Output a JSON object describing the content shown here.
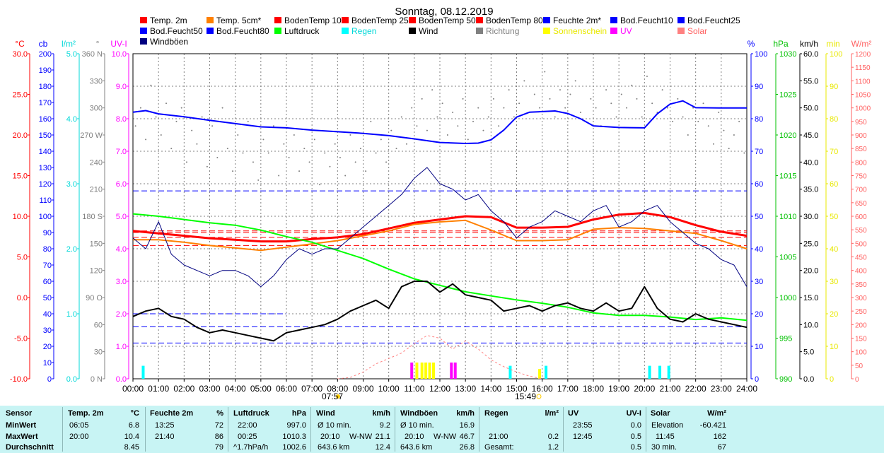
{
  "title": "Sonntag, 08.12.2019",
  "legend": [
    {
      "label": "Temp. 2m",
      "color": "#ff0000",
      "label_color": "#000000"
    },
    {
      "label": "Temp. 5cm*",
      "color": "#ff8000",
      "label_color": "#000000"
    },
    {
      "label": "BodenTemp 10",
      "color": "#ff0000",
      "label_color": "#000000"
    },
    {
      "label": "BodenTemp 25",
      "color": "#ff0000",
      "label_color": "#000000"
    },
    {
      "label": "BodenTemp 50",
      "color": "#ff0000",
      "label_color": "#000000"
    },
    {
      "label": "BodenTemp 80",
      "color": "#ff0000",
      "label_color": "#000000"
    },
    {
      "label": "Feuchte 2m*",
      "color": "#0000ff",
      "label_color": "#000000"
    },
    {
      "label": "Bod.Feucht10",
      "color": "#0000ff",
      "label_color": "#000000"
    },
    {
      "label": "Bod.Feucht25",
      "color": "#0000ff",
      "label_color": "#000000"
    },
    {
      "label": "Bod.Feucht50",
      "color": "#0000ff",
      "label_color": "#000000"
    },
    {
      "label": "Bod.Feucht80",
      "color": "#0000ff",
      "label_color": "#000000"
    },
    {
      "label": "Luftdruck",
      "color": "#00ff00",
      "label_color": "#000000"
    },
    {
      "label": "Regen",
      "color": "#00ffff",
      "label_color": "#00d8d8"
    },
    {
      "label": "Wind",
      "color": "#000000",
      "label_color": "#000000"
    },
    {
      "label": "Richtung",
      "color": "#808080",
      "label_color": "#808080"
    },
    {
      "label": "Sonnenschein",
      "color": "#ffff00",
      "label_color": "#e8e800"
    },
    {
      "label": "UV",
      "color": "#ff00ff",
      "label_color": "#ff00ff"
    },
    {
      "label": "Solar",
      "color": "#ff8080",
      "label_color": "#ff6060"
    },
    {
      "label": "Windböen",
      "color": "#000080",
      "label_color": "#000000"
    }
  ],
  "axes_left": [
    {
      "unit": "°C",
      "color": "#ff0000",
      "ticks": [
        "30.0",
        "25.0",
        "20.0",
        "15.0",
        "10.0",
        "5.0",
        "0.0",
        "-5.0",
        "-10.0"
      ]
    },
    {
      "unit": "cb",
      "color": "#0000ff",
      "ticks": [
        "200",
        "190",
        "180",
        "170",
        "160",
        "150",
        "140",
        "130",
        "120",
        "110",
        "100",
        "90",
        "80",
        "70",
        "60",
        "50",
        "40",
        "30",
        "20",
        "10",
        "0"
      ]
    },
    {
      "unit": "l/m²",
      "color": "#00d8d8",
      "ticks": [
        "5.0",
        "4.0",
        "3.0",
        "2.0",
        "1.0",
        "0.0"
      ]
    },
    {
      "unit": "°",
      "color": "#808080",
      "ticks": [
        "360 N",
        "330",
        "300",
        "270 W",
        "240",
        "210",
        "180 S",
        "150",
        "120",
        "90 O",
        "60",
        "30",
        "0 N"
      ]
    },
    {
      "unit": "UV-I",
      "color": "#ff00ff",
      "ticks": [
        "10.0",
        "9.0",
        "8.0",
        "7.0",
        "6.0",
        "5.0",
        "4.0",
        "3.0",
        "2.0",
        "1.0",
        "0.0"
      ]
    }
  ],
  "axes_right": [
    {
      "unit": "%",
      "color": "#0000ff",
      "ticks": [
        "100",
        "90",
        "80",
        "70",
        "60",
        "50",
        "40",
        "30",
        "20",
        "10",
        "0"
      ]
    },
    {
      "unit": "hPa",
      "color": "#00c000",
      "ticks": [
        "1030",
        "1025",
        "1020",
        "1015",
        "1010",
        "1005",
        "1000",
        "995",
        "990"
      ]
    },
    {
      "unit": "km/h",
      "color": "#000000",
      "ticks": [
        "60.0",
        "55.0",
        "50.0",
        "45.0",
        "40.0",
        "35.0",
        "30.0",
        "25.0",
        "20.0",
        "15.0",
        "10.0",
        "5.0",
        "0.0"
      ]
    },
    {
      "unit": "min",
      "color": "#e8e800",
      "ticks": [
        "100",
        "90",
        "80",
        "70",
        "60",
        "50",
        "40",
        "30",
        "20",
        "10",
        "0"
      ]
    },
    {
      "unit": "W/m²",
      "color": "#ff6060",
      "ticks": [
        "1200",
        "1150",
        "1100",
        "1050",
        "1000",
        "950",
        "900",
        "850",
        "800",
        "750",
        "700",
        "650",
        "600",
        "550",
        "500",
        "450",
        "400",
        "350",
        "300",
        "250",
        "200",
        "150",
        "100",
        "50",
        "0"
      ]
    }
  ],
  "x_ticks": [
    "00:00",
    "01:00",
    "02:00",
    "03:00",
    "04:00",
    "05:00",
    "06:00",
    "07:00",
    "08:00",
    "09:00",
    "10:00",
    "11:00",
    "12:00",
    "13:00",
    "14:00",
    "15:00",
    "16:00",
    "17:00",
    "18:00",
    "19:00",
    "20:00",
    "21:00",
    "22:00",
    "23:00",
    "24:00"
  ],
  "sunrise": "07:57",
  "sunset": "15:49",
  "chart_data": {
    "type": "line",
    "title": "Sonntag, 08.12.2019",
    "x_unit": "hours",
    "x_range": [
      0,
      24
    ],
    "series": [
      {
        "name": "Temp. 2m",
        "unit": "°C",
        "range": [
          -10,
          30
        ],
        "color": "#ff0000",
        "width": 3,
        "x": [
          0,
          1,
          2,
          3,
          4,
          5,
          6,
          7,
          8,
          9,
          10,
          11,
          12,
          13,
          14,
          15,
          16,
          17,
          18,
          19,
          20,
          21,
          22,
          23,
          24
        ],
        "y": [
          8.2,
          7.9,
          7.6,
          7.3,
          7.1,
          6.9,
          6.9,
          7.2,
          7.4,
          7.8,
          8.5,
          9.2,
          9.6,
          10.0,
          9.9,
          8.6,
          8.6,
          8.7,
          9.6,
          10.2,
          10.4,
          9.9,
          8.9,
          8.1,
          7.6
        ]
      },
      {
        "name": "Temp. 5cm*",
        "unit": "°C",
        "range": [
          -10,
          30
        ],
        "color": "#ff8000",
        "width": 2,
        "x": [
          0,
          1,
          2,
          3,
          4,
          5,
          6,
          7,
          8,
          9,
          10,
          11,
          12,
          13,
          14,
          15,
          16,
          17,
          18,
          19,
          20,
          21,
          22,
          23,
          24
        ],
        "y": [
          7.1,
          7.1,
          6.8,
          6.4,
          6.1,
          5.8,
          6.2,
          6.6,
          7.0,
          7.6,
          8.2,
          9.0,
          9.3,
          9.5,
          8.3,
          7.0,
          7.0,
          7.1,
          8.4,
          8.6,
          8.5,
          8.2,
          7.9,
          7.0,
          6.0
        ]
      },
      {
        "name": "Feuchte 2m*",
        "unit": "%",
        "range": [
          0,
          100
        ],
        "color": "#0000ff",
        "width": 2,
        "x": [
          0,
          0.5,
          1,
          2,
          3,
          4,
          5,
          6,
          7,
          8,
          9,
          10,
          11,
          12,
          13,
          13.5,
          14,
          14.5,
          15,
          15.5,
          16,
          16.5,
          17,
          17.5,
          18,
          19,
          20,
          20.5,
          21,
          21.5,
          22,
          23,
          24
        ],
        "y": [
          82,
          82.5,
          81.5,
          80.6,
          79.5,
          78.5,
          77.5,
          77.2,
          76.5,
          76,
          75.5,
          74.8,
          73.8,
          72.7,
          72.4,
          72.5,
          73.5,
          76.5,
          80.5,
          82,
          82.2,
          82.4,
          81.6,
          80,
          77.8,
          77.3,
          77.2,
          81.5,
          84.5,
          85.5,
          83.4,
          83.3,
          83.3
        ]
      },
      {
        "name": "Luftdruck",
        "unit": "hPa",
        "range": [
          990,
          1030
        ],
        "color": "#00ff00",
        "width": 2,
        "x": [
          0,
          1,
          2,
          3,
          4,
          5,
          6,
          7,
          8,
          9,
          10,
          11,
          12,
          13,
          14,
          15,
          16,
          17,
          18,
          19,
          20,
          21,
          22,
          23,
          24
        ],
        "y": [
          1010.3,
          1010.0,
          1009.6,
          1009.2,
          1008.9,
          1008.3,
          1007.5,
          1006.8,
          1005.8,
          1004.8,
          1003.5,
          1002.3,
          1001.5,
          1000.7,
          1000.2,
          999.7,
          999.3,
          998.8,
          998.1,
          997.8,
          997.8,
          997.6,
          997.3,
          997.5,
          997.2
        ]
      },
      {
        "name": "Wind",
        "unit": "km/h",
        "range": [
          0,
          60
        ],
        "color": "#000000",
        "width": 2,
        "x": [
          0,
          0.5,
          1,
          1.5,
          2,
          2.5,
          3,
          3.5,
          4,
          4.5,
          5,
          5.5,
          6,
          6.5,
          7,
          7.5,
          8,
          8.5,
          9,
          9.5,
          10,
          10.5,
          11,
          11.5,
          12,
          12.5,
          13,
          13.5,
          14,
          14.5,
          15,
          15.5,
          16,
          16.5,
          17,
          17.5,
          18,
          18.5,
          19,
          19.5,
          20,
          20.5,
          21,
          21.5,
          22,
          22.5,
          23,
          23.5,
          24
        ],
        "y": [
          11.5,
          12.5,
          13,
          11.5,
          11,
          9.5,
          8.5,
          9,
          8.5,
          8,
          7.5,
          7,
          8.5,
          9,
          9.5,
          10,
          11,
          12.5,
          13.5,
          14.5,
          13,
          17,
          18,
          18,
          16,
          17.5,
          15.5,
          15,
          14.5,
          12.5,
          13,
          13.5,
          12.5,
          13.5,
          14,
          13,
          12.5,
          14,
          12.5,
          13,
          17,
          13,
          11,
          10.5,
          12,
          11,
          10.5,
          10,
          9.5
        ]
      },
      {
        "name": "Windböen",
        "unit": "km/h",
        "range": [
          0,
          60
        ],
        "color": "#000080",
        "width": 1,
        "x": [
          0,
          0.5,
          1,
          1.5,
          2,
          2.5,
          3,
          3.5,
          4,
          4.5,
          5,
          5.5,
          6,
          6.5,
          7,
          7.5,
          8,
          8.5,
          9,
          9.5,
          10,
          10.5,
          11,
          11.5,
          12,
          12.5,
          13,
          13.5,
          14,
          14.5,
          15,
          15.5,
          16,
          16.5,
          17,
          17.5,
          18,
          18.5,
          19,
          19.5,
          20,
          20.5,
          21,
          21.5,
          22,
          22.5,
          23,
          23.5,
          24
        ],
        "y": [
          26,
          24,
          29,
          23,
          21,
          20,
          19,
          20,
          20,
          19,
          17,
          19,
          22,
          24,
          23,
          24,
          24,
          26,
          28,
          30,
          32,
          34,
          37,
          39,
          36,
          35,
          33,
          34,
          31,
          29,
          26,
          28,
          29,
          31,
          30,
          29,
          31,
          32,
          28,
          29,
          31,
          32,
          29,
          27,
          25,
          24,
          22,
          21,
          17
        ]
      },
      {
        "name": "Regen",
        "unit": "l/m²",
        "range": [
          0,
          5
        ],
        "color": "#00ffff",
        "type": "bars",
        "x": [
          0.4,
          14.75,
          16.15,
          20.2,
          20.6,
          20.95
        ],
        "y": [
          0.2,
          0.2,
          0.2,
          0.2,
          0.2,
          0.2
        ]
      },
      {
        "name": "Sonnenschein",
        "unit": "min",
        "range": [
          0,
          100
        ],
        "color": "#ffff00",
        "type": "bars",
        "x": [
          11.1,
          11.3,
          11.45,
          11.6,
          11.75,
          15.9
        ],
        "y": [
          5,
          5,
          5,
          5,
          5,
          3
        ]
      },
      {
        "name": "Solar",
        "unit": "W/m²",
        "range": [
          0,
          1200
        ],
        "color": "#ff8080",
        "dashed": true,
        "x": [
          8,
          8.5,
          9,
          9.5,
          10,
          10.5,
          11,
          11.5,
          12,
          12.5,
          13,
          13.5,
          14,
          14.5,
          15,
          15.5,
          16
        ],
        "y": [
          0,
          5,
          25,
          55,
          75,
          95,
          130,
          160,
          150,
          110,
          140,
          110,
          70,
          45,
          25,
          10,
          0
        ]
      },
      {
        "name": "UV",
        "unit": "UV-I",
        "range": [
          0,
          10
        ],
        "color": "#ff00ff",
        "type": "bars",
        "x": [
          10.9,
          12.45,
          12.6
        ],
        "y": [
          0.5,
          0.5,
          0.5
        ]
      }
    ],
    "richtung_points": {
      "name": "Richtung",
      "unit": "°",
      "range": [
        0,
        360
      ],
      "color": "#808080",
      "x": [
        0.1,
        0.3,
        0.5,
        0.7,
        0.9,
        1.1,
        1.3,
        1.5,
        1.7,
        1.9,
        2.1,
        2.3,
        2.5,
        2.7,
        2.9,
        3.1,
        3.3,
        3.5,
        3.7,
        3.9,
        4.1,
        4.3,
        4.5,
        4.7,
        4.9,
        5.1,
        5.3,
        5.5,
        5.7,
        5.9,
        6.1,
        6.3,
        6.5,
        6.7,
        6.9,
        7.1,
        7.3,
        7.5,
        7.7,
        7.9,
        8.1,
        8.3,
        8.5,
        8.7,
        8.9,
        9.1,
        9.3,
        9.5,
        9.7,
        9.9,
        10.1,
        10.3,
        10.5,
        10.7,
        10.9,
        11.1,
        11.3,
        11.5,
        11.7,
        11.9,
        12.1,
        12.3,
        12.5,
        12.7,
        12.9,
        13.1,
        13.3,
        13.5,
        13.7,
        13.9,
        14.1,
        14.3,
        14.5,
        14.7,
        14.9,
        15.1,
        15.3,
        15.5,
        15.7,
        15.9,
        16.1,
        16.3,
        16.5,
        16.7,
        16.9,
        17.1,
        17.3,
        17.5,
        17.7,
        17.9,
        18.1,
        18.3,
        18.5,
        18.7,
        18.9,
        19.1,
        19.3,
        19.5,
        19.7,
        19.9,
        20.1,
        20.3,
        20.5,
        20.7,
        20.9,
        21.1,
        21.3,
        21.5,
        21.7,
        21.9,
        22.1,
        22.3,
        22.5,
        22.7,
        22.9,
        23.1,
        23.3,
        23.5,
        23.7,
        23.9
      ],
      "y": [
        280,
        300,
        265,
        325,
        290,
        270,
        305,
        255,
        285,
        300,
        240,
        275,
        260,
        290,
        235,
        280,
        245,
        300,
        255,
        230,
        270,
        250,
        285,
        240,
        220,
        265,
        250,
        280,
        225,
        260,
        245,
        270,
        230,
        255,
        240,
        265,
        215,
        250,
        235,
        260,
        245,
        225,
        270,
        240,
        255,
        230,
        285,
        250,
        265,
        240,
        275,
        255,
        290,
        260,
        300,
        280,
        310,
        275,
        320,
        290,
        305,
        270,
        295,
        280,
        310,
        265,
        285,
        300,
        275,
        290,
        310,
        280,
        300,
        320,
        290,
        305,
        330,
        295,
        315,
        300,
        340,
        310,
        290,
        320,
        300,
        315,
        330,
        295,
        285,
        310,
        300,
        280,
        320,
        305,
        290,
        315,
        300,
        325,
        310,
        290,
        335,
        305,
        295,
        320,
        300,
        285,
        310,
        290,
        270,
        300,
        285,
        305,
        280,
        260,
        295,
        275,
        255,
        270,
        285,
        250
      ]
    }
  },
  "stats": {
    "labels": {
      "header": "Sensor",
      "min": "MinWert",
      "max": "MaxWert",
      "avg": "Durchschnitt"
    },
    "temp": {
      "title": "Temp. 2m",
      "unit": "°C",
      "min_time": "06:05",
      "min_val": "6.8",
      "max_time": "20:00",
      "max_val": "10.4",
      "avg_val": "8.45"
    },
    "hum": {
      "title": "Feuchte 2m",
      "unit": "%",
      "min_time": "13:25",
      "min_val": "72",
      "max_time": "21:40",
      "max_val": "86",
      "avg_val": "79"
    },
    "press": {
      "title": "Luftdruck",
      "unit": "hPa",
      "min_time": "22:00",
      "min_val": "997.0",
      "max_time": "00:25",
      "max_val": "1010.3",
      "avg_label": "^1.7hPa/h",
      "avg_val": "1002.6"
    },
    "wind": {
      "title": "Wind",
      "unit": "km/h",
      "min_label": "Ø 10 min.",
      "min_val": "9.2",
      "max_time": "20:10",
      "max_dir": "W-NW",
      "max_val": "21.1",
      "avg_label": "643.6 km",
      "avg_val": "12.4"
    },
    "gust": {
      "title": "Windböen",
      "unit": "km/h",
      "min_label": "Ø 10 min.",
      "min_val": "16.9",
      "max_time": "20:10",
      "max_dir": "W-NW",
      "max_val": "46.7",
      "avg_label": "643.6 km",
      "avg_val": "26.8"
    },
    "rain": {
      "title": "Regen",
      "unit": "l/m²",
      "max_time": "21:00",
      "max_val": "0.2",
      "avg_label": "Gesamt:",
      "avg_val": "1.2"
    },
    "uv": {
      "title": "UV",
      "unit": "UV-I",
      "min_time": "23:55",
      "min_val": "0.0",
      "max_time": "12:45",
      "max_val": "0.5",
      "avg_val": "0.5"
    },
    "solar": {
      "title": "Solar",
      "unit": "W/m²",
      "min_label": "Elevation",
      "min_val": "-60.421",
      "max_time": "11:45",
      "max_val": "162",
      "avg_label": "30 min.",
      "avg_val": "67"
    }
  }
}
